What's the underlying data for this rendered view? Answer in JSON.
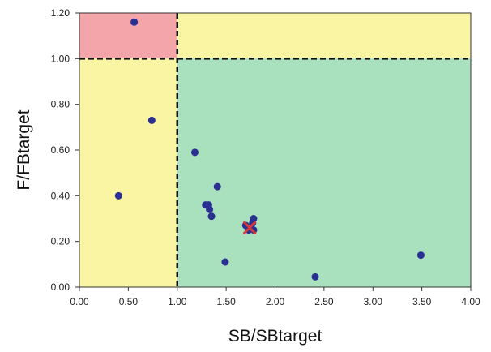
{
  "chart_data": {
    "type": "scatter",
    "xlabel": "SB/SBtarget",
    "ylabel": "F/FBtarget",
    "xlim": [
      0,
      4
    ],
    "ylim": [
      0,
      1.2
    ],
    "x_ticks": [
      0,
      0.5,
      1,
      1.5,
      2,
      2.5,
      3,
      3.5,
      4
    ],
    "x_tick_labels": [
      "0.00",
      "0.50",
      "1.00",
      "1.50",
      "2.00",
      "2.50",
      "3.00",
      "3.50",
      "4.00"
    ],
    "y_ticks": [
      0,
      0.2,
      0.4,
      0.6,
      0.8,
      1,
      1.2
    ],
    "y_tick_labels": [
      "0.00",
      "0.20",
      "0.40",
      "0.60",
      "0.80",
      "1.00",
      "1.20"
    ],
    "grid": false,
    "reference_lines": {
      "x": 1.0,
      "y": 1.0,
      "style": "dashed",
      "color": "#111111"
    },
    "regions": [
      {
        "x": [
          0,
          1
        ],
        "y": [
          1,
          1.2
        ],
        "color": "#f4a5a9"
      },
      {
        "x": [
          1,
          4
        ],
        "y": [
          1,
          1.2
        ],
        "color": "#faf5a3"
      },
      {
        "x": [
          0,
          1
        ],
        "y": [
          0,
          1
        ],
        "color": "#faf5a3"
      },
      {
        "x": [
          1,
          4
        ],
        "y": [
          0,
          1
        ],
        "color": "#a9e0bd"
      }
    ],
    "points": [
      {
        "x": 0.56,
        "y": 1.16
      },
      {
        "x": 0.74,
        "y": 0.73
      },
      {
        "x": 0.4,
        "y": 0.4
      },
      {
        "x": 1.18,
        "y": 0.59
      },
      {
        "x": 1.41,
        "y": 0.44
      },
      {
        "x": 1.29,
        "y": 0.36
      },
      {
        "x": 1.32,
        "y": 0.36
      },
      {
        "x": 1.33,
        "y": 0.34
      },
      {
        "x": 1.35,
        "y": 0.31
      },
      {
        "x": 1.7,
        "y": 0.27
      },
      {
        "x": 1.73,
        "y": 0.25
      },
      {
        "x": 1.77,
        "y": 0.28
      },
      {
        "x": 1.78,
        "y": 0.3
      },
      {
        "x": 1.78,
        "y": 0.25
      },
      {
        "x": 1.49,
        "y": 0.11
      },
      {
        "x": 2.41,
        "y": 0.045
      },
      {
        "x": 3.49,
        "y": 0.14
      }
    ],
    "point_color": "#2a2f92",
    "highlight": {
      "x": 1.74,
      "y": 0.26,
      "marker": "x",
      "color": "#d33a3a"
    }
  }
}
